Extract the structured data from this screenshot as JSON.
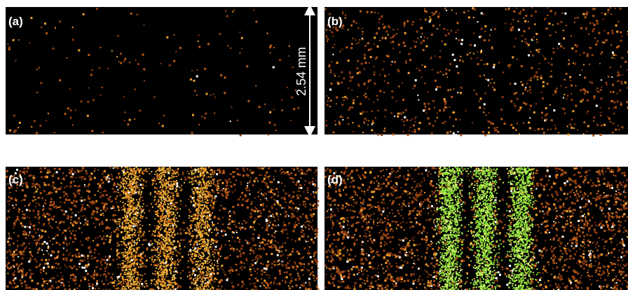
{
  "panels": [
    {
      "label": "(a)"
    },
    {
      "label": "(b)"
    },
    {
      "label": "(c)"
    },
    {
      "label": "(d)"
    }
  ],
  "scale_bar": {
    "label": "2.54 mm"
  }
}
